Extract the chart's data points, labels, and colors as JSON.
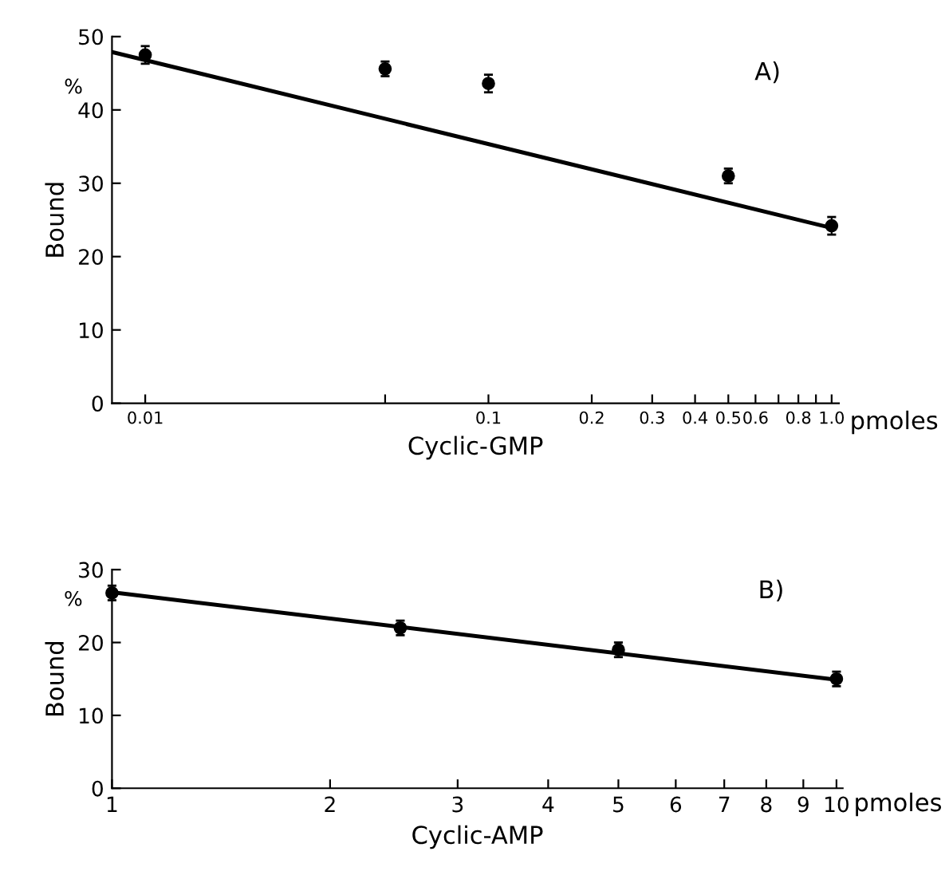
{
  "chart_data": [
    {
      "type": "scatter",
      "xlabel": "Cyclic-GMP",
      "ylabel": "Bound",
      "annotations": [
        "A)",
        "%",
        "pmoles"
      ],
      "log": "x",
      "xlim": [
        0.008,
        1.05
      ],
      "ylim": [
        0,
        50
      ],
      "xticks": [
        0.01,
        {
          "value": 0.05,
          "label": null
        },
        0.1,
        0.2,
        0.3,
        0.4,
        0.5,
        0.6,
        {
          "value": 0.7,
          "label": null
        },
        0.8,
        {
          "value": 0.9,
          "label": null
        },
        {
          "value": 1,
          "label": "1.0"
        }
      ],
      "yticks": [
        0,
        10,
        20,
        30,
        40,
        50
      ],
      "grid": false,
      "legend": false,
      "marker": "circle",
      "series": [
        {
          "color": "#000000",
          "x": [
            0.01,
            0.05,
            0.1,
            0.5,
            1.0
          ],
          "values": [
            47.5,
            45.6,
            43.6,
            31.0,
            24.2
          ],
          "errors": [
            1.2,
            1.0,
            1.2,
            1.0,
            1.2
          ]
        },
        {
          "type": "line",
          "color": "#000000",
          "line_style": "solid",
          "marker": "none",
          "x": [
            0.008,
            1.0
          ],
          "values": [
            47.9,
            23.9
          ]
        }
      ]
    },
    {
      "type": "scatter",
      "xlabel": "Cyclic-AMP",
      "ylabel": "Bound",
      "annotations": [
        "B)",
        "%",
        "pmoles"
      ],
      "log": "x",
      "xlim": [
        1,
        10.2
      ],
      "ylim": [
        0,
        30
      ],
      "xticks": [
        1,
        2,
        3,
        4,
        5,
        6,
        7,
        8,
        9,
        10
      ],
      "yticks": [
        0,
        10,
        20,
        30
      ],
      "grid": false,
      "legend": false,
      "marker": "circle",
      "series": [
        {
          "color": "#000000",
          "x": [
            1,
            2.5,
            5,
            10
          ],
          "values": [
            26.8,
            22.0,
            19.0,
            15.0
          ],
          "errors": [
            1.0,
            1.0,
            1.0,
            1.0
          ]
        },
        {
          "type": "line",
          "color": "#000000",
          "line_style": "solid",
          "marker": "none",
          "x": [
            1,
            10
          ],
          "values": [
            26.9,
            14.9
          ]
        }
      ]
    }
  ]
}
